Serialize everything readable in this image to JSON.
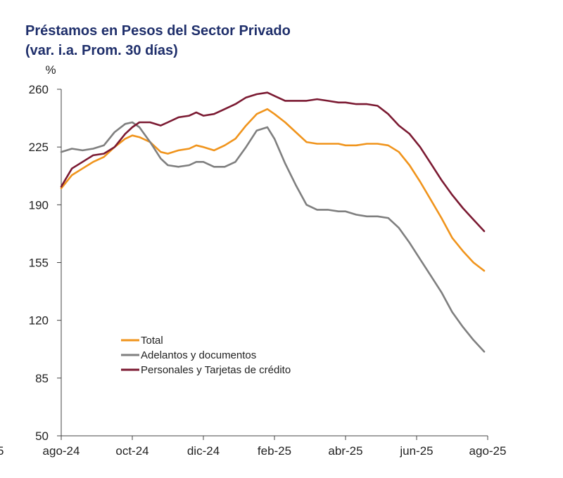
{
  "title_line1": "Préstamos en Pesos del Sector Privado",
  "title_line2": "(var. i.a. Prom. 30 días)",
  "chart_data": {
    "type": "line",
    "title": "Préstamos en Pesos del Sector Privado (var. i.a. Prom. 30 días)",
    "ylabel": "%",
    "xlabel": "",
    "ylim": [
      50,
      260
    ],
    "yticks": [
      50,
      85,
      120,
      155,
      190,
      225,
      260
    ],
    "xlim": [
      0,
      12
    ],
    "xticks": [
      {
        "x": 0,
        "label": "ago-24"
      },
      {
        "x": 2,
        "label": "oct-24"
      },
      {
        "x": 4,
        "label": "dic-24"
      },
      {
        "x": 6,
        "label": "feb-25"
      },
      {
        "x": 8,
        "label": "abr-25"
      },
      {
        "x": 10,
        "label": "jun-25"
      },
      {
        "x": 12,
        "label": "ago-25"
      }
    ],
    "clipped_left_label": "5",
    "legend_position": "center-left",
    "series": [
      {
        "name": "Total",
        "color": "#f0941c",
        "x": [
          0,
          0.3,
          0.6,
          0.9,
          1.2,
          1.5,
          1.8,
          2.0,
          2.2,
          2.5,
          2.8,
          3.0,
          3.3,
          3.6,
          3.8,
          4.0,
          4.3,
          4.6,
          4.9,
          5.2,
          5.5,
          5.8,
          6.0,
          6.3,
          6.6,
          6.9,
          7.2,
          7.5,
          7.8,
          8.0,
          8.3,
          8.6,
          8.9,
          9.2,
          9.5,
          9.8,
          10.1,
          10.4,
          10.7,
          11.0,
          11.3,
          11.6,
          11.9
        ],
        "values": [
          200,
          208,
          212,
          216,
          219,
          225,
          230,
          232,
          231,
          228,
          222,
          221,
          223,
          224,
          226,
          225,
          223,
          226,
          230,
          238,
          245,
          248,
          245,
          240,
          234,
          228,
          227,
          227,
          227,
          226,
          226,
          227,
          227,
          226,
          222,
          214,
          204,
          193,
          182,
          170,
          162,
          155,
          150
        ]
      },
      {
        "name": "Adelantos y documentos",
        "color": "#7f7f7f",
        "x": [
          0,
          0.3,
          0.6,
          0.9,
          1.2,
          1.5,
          1.8,
          2.0,
          2.2,
          2.5,
          2.8,
          3.0,
          3.3,
          3.6,
          3.8,
          4.0,
          4.3,
          4.6,
          4.9,
          5.2,
          5.5,
          5.8,
          6.0,
          6.3,
          6.6,
          6.9,
          7.2,
          7.5,
          7.8,
          8.0,
          8.3,
          8.6,
          8.9,
          9.2,
          9.5,
          9.8,
          10.1,
          10.4,
          10.7,
          11.0,
          11.3,
          11.6,
          11.9
        ],
        "values": [
          222,
          224,
          223,
          224,
          226,
          234,
          239,
          240,
          237,
          228,
          218,
          214,
          213,
          214,
          216,
          216,
          213,
          213,
          216,
          225,
          235,
          237,
          230,
          215,
          202,
          190,
          187,
          187,
          186,
          186,
          184,
          183,
          183,
          182,
          176,
          167,
          157,
          147,
          137,
          125,
          116,
          108,
          101
        ]
      },
      {
        "name": "Personales y Tarjetas de crédito",
        "color": "#7b1a32",
        "x": [
          0,
          0.3,
          0.6,
          0.9,
          1.2,
          1.5,
          1.8,
          2.0,
          2.2,
          2.5,
          2.8,
          3.0,
          3.3,
          3.6,
          3.8,
          4.0,
          4.3,
          4.6,
          4.9,
          5.2,
          5.5,
          5.8,
          6.0,
          6.3,
          6.6,
          6.9,
          7.2,
          7.5,
          7.8,
          8.0,
          8.3,
          8.6,
          8.9,
          9.2,
          9.5,
          9.8,
          10.1,
          10.4,
          10.7,
          11.0,
          11.3,
          11.6,
          11.9
        ],
        "values": [
          201,
          212,
          216,
          220,
          221,
          225,
          233,
          237,
          240,
          240,
          238,
          240,
          243,
          244,
          246,
          244,
          245,
          248,
          251,
          255,
          257,
          258,
          256,
          253,
          253,
          253,
          254,
          253,
          252,
          252,
          251,
          251,
          250,
          245,
          238,
          233,
          225,
          215,
          205,
          196,
          188,
          181,
          174
        ]
      }
    ]
  }
}
